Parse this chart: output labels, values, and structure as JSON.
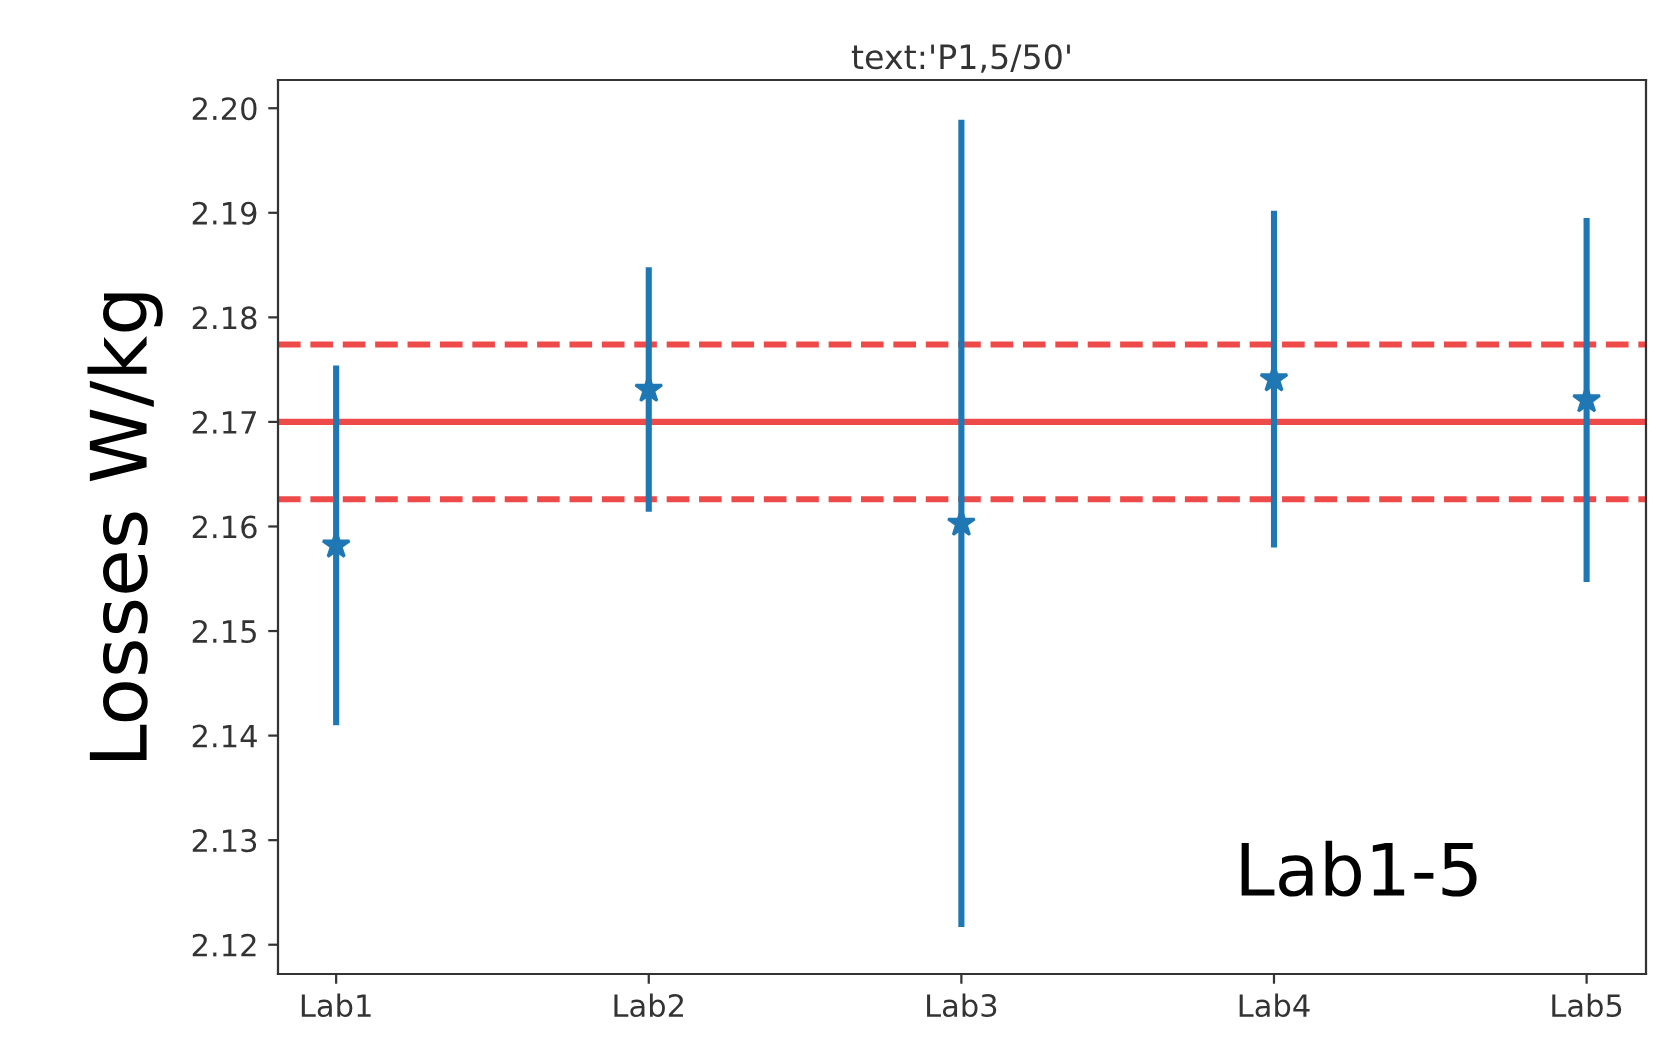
{
  "chart_data": {
    "type": "scatter",
    "title": "text:'P1,5/50'",
    "ylabel": "Losses W/kg",
    "categories": [
      "Lab1",
      "Lab2",
      "Lab3",
      "Lab4",
      "Lab5"
    ],
    "series": [
      {
        "color": "#1f77b4",
        "values": [
          2.1582,
          2.1731,
          2.1603,
          2.1741,
          2.1721
        ],
        "errors": [
          0.0172,
          0.0117,
          0.0386,
          0.0161,
          0.0174
        ]
      }
    ],
    "marker": "star",
    "ylim": [
      2.1172,
      2.2027
    ],
    "yticks": [
      2.12,
      2.13,
      2.14,
      2.15,
      2.16,
      2.17,
      2.18,
      2.19,
      {
        "value": 2.2,
        "label": "2.20"
      }
    ],
    "ref_lines": [
      {
        "axis": "y",
        "value": 2.17,
        "color": "#ef4a4a",
        "line_style": "solid"
      },
      {
        "axis": "y",
        "value": 2.1774,
        "color": "#ef4a4a",
        "line_style": "dashed"
      },
      {
        "axis": "y",
        "value": 2.1626,
        "color": "#ef4a4a",
        "line_style": "dashed"
      }
    ],
    "annotations": [
      "Lab1-5"
    ],
    "grid": false,
    "legend": false
  }
}
